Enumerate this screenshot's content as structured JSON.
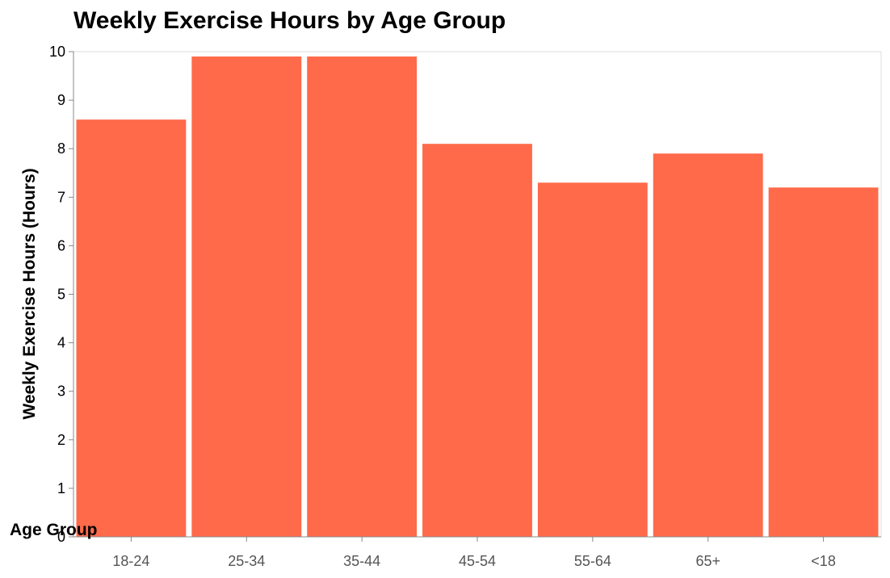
{
  "chart_data": {
    "type": "bar",
    "title": "Weekly Exercise Hours by Age Group",
    "xlabel": "Age Group",
    "ylabel": "Weekly Exercise Hours (Hours)",
    "categories": [
      "18-24",
      "25-34",
      "35-44",
      "45-54",
      "55-64",
      "65+",
      "<18"
    ],
    "values": [
      8.6,
      9.9,
      9.9,
      8.1,
      7.3,
      7.9,
      7.2
    ],
    "ylim": [
      0,
      10
    ],
    "yticks": [
      0,
      1,
      2,
      3,
      4,
      5,
      6,
      7,
      8,
      9,
      10
    ],
    "grid": false,
    "legend": "none",
    "bar_color": "#ff6a4a"
  }
}
